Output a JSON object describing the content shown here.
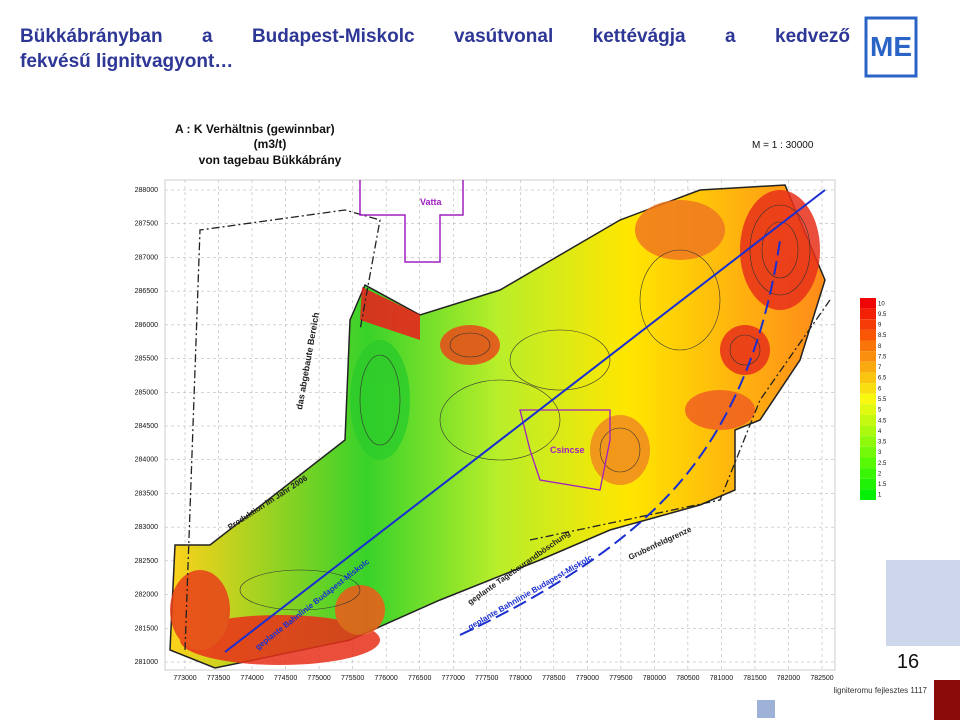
{
  "header": {
    "title_lines": [
      "Bükkábrányban a Budapest-Miskolc vasútvonal kettévágja a kedvező",
      "fekvésű lignitvagyont…"
    ]
  },
  "map": {
    "title_lines": [
      "A : K  Verhältnis (gewinnbar)",
      "(m3/t)",
      "von tagebau Bükkábrány"
    ],
    "scale": "M = 1 : 30000",
    "y_labels": [
      "288000",
      "287500",
      "287000",
      "286500",
      "286000",
      "285500",
      "285000",
      "284500",
      "284000",
      "283500",
      "283000",
      "282500",
      "282000",
      "281500",
      "281000"
    ],
    "x_labels": [
      "773000",
      "773500",
      "774000",
      "774500",
      "775000",
      "775500",
      "776000",
      "776500",
      "777000",
      "777500",
      "778000",
      "778500",
      "779000",
      "779500",
      "780000",
      "780500",
      "781000",
      "781500",
      "782000",
      "782500"
    ],
    "legend": [
      "10",
      "9.5",
      "9",
      "8.5",
      "8",
      "7.5",
      "7",
      "6.5",
      "6",
      "5.5",
      "5",
      "4.5",
      "4",
      "3.5",
      "3",
      "2.5",
      "2",
      "1.5",
      "1"
    ],
    "places": {
      "vatta": "Vatta",
      "csincse": "Csincse",
      "mined": "das abgebaute Bereich",
      "production": "Produktion im Jahr 2006",
      "slope": "geplante Tagebaurandböschung",
      "rail_planned": "geplante Bahnlinie Budapest-Miskolc",
      "boundary": "Grubenfeldgrenze",
      "rail_left": "geplante Bahnlinie Budapest-Miskolc"
    }
  },
  "footer": {
    "page": "16",
    "note": "ligniteromu fejlesztes 1117"
  }
}
